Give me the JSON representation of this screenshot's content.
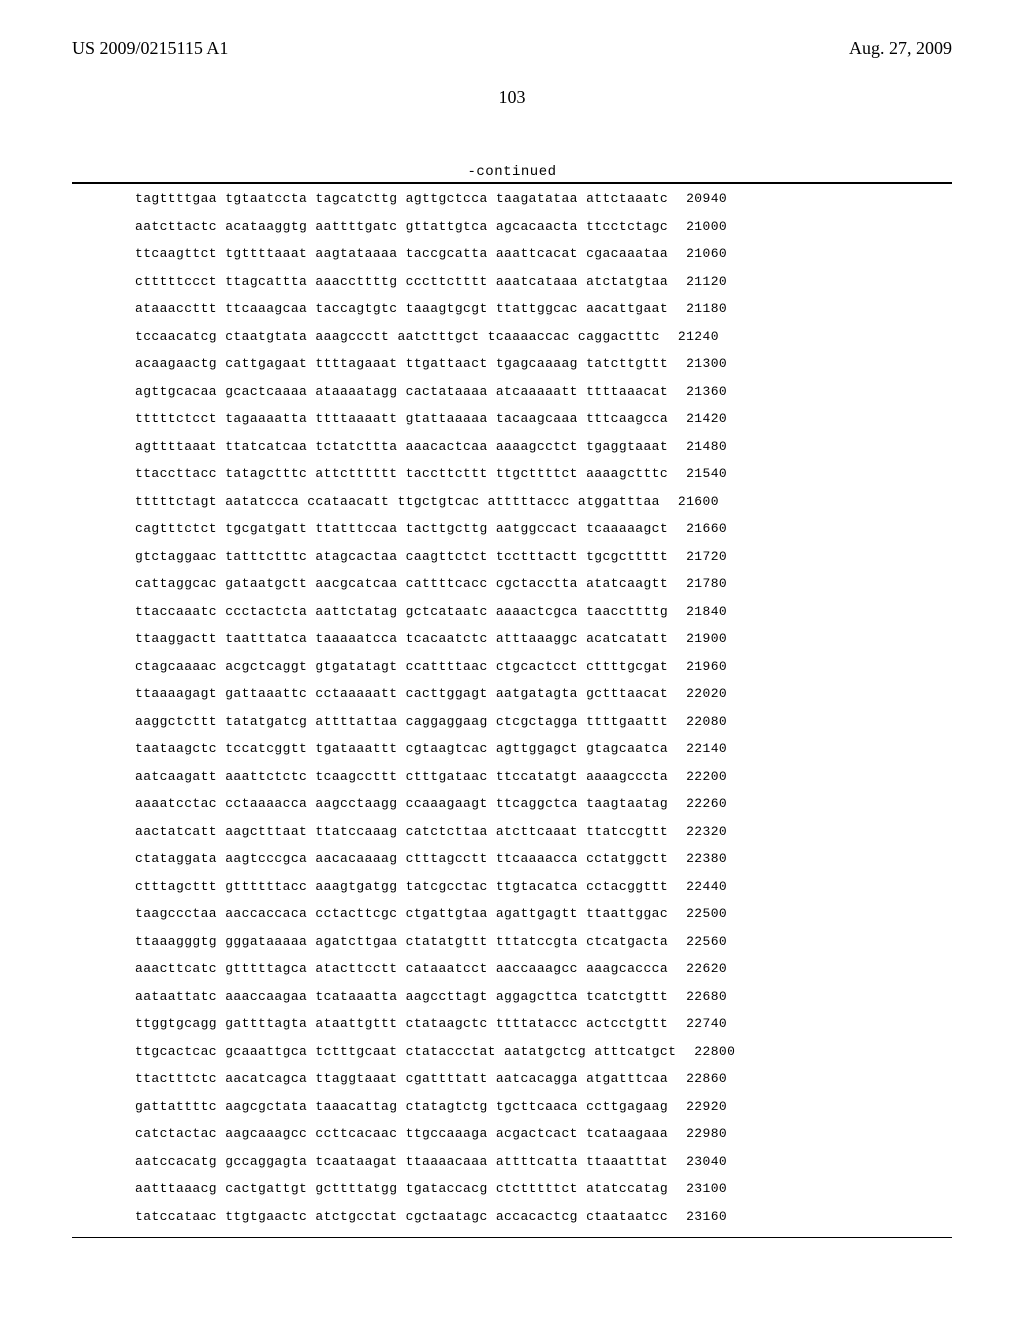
{
  "header": {
    "pub_number": "US 2009/0215115 A1",
    "date": "Aug. 27, 2009"
  },
  "page_number": "103",
  "continued_label": "-continued",
  "sequence": {
    "rows": [
      {
        "g": [
          "tagttttgaa",
          "tgtaatccta",
          "tagcatcttg",
          "agttgctcca",
          "taagatataa",
          "attctaaatc"
        ],
        "p": "20940"
      },
      {
        "g": [
          "aatcttactc",
          "acataaggtg",
          "aattttgatc",
          "gttattgtca",
          "agcacaacta",
          "ttcctctagc"
        ],
        "p": "21000"
      },
      {
        "g": [
          "ttcaagttct",
          "tgttttaaat",
          "aagtataaaa",
          "taccgcatta",
          "aaattcacat",
          "cgacaaataa"
        ],
        "p": "21060"
      },
      {
        "g": [
          "ctttttccct",
          "ttagcattta",
          "aaaccttttg",
          "cccttctttt",
          "aaatcataaa",
          "atctatgtaa"
        ],
        "p": "21120"
      },
      {
        "g": [
          "ataaaccttt",
          "ttcaaagcaa",
          "taccagtgtc",
          "taaagtgcgt",
          "ttattggcac",
          "aacattgaat"
        ],
        "p": "21180"
      },
      {
        "g": [
          "tccaacatcg",
          "ctaatgtata",
          "aaagccctt",
          "aatctttgct",
          "tcaaaaccac",
          "caggactttc"
        ],
        "p": "21240"
      },
      {
        "g": [
          "acaagaactg",
          "cattgagaat",
          "ttttagaaat",
          "ttgattaact",
          "tgagcaaaag",
          "tatcttgttt"
        ],
        "p": "21300"
      },
      {
        "g": [
          "agttgcacaa",
          "gcactcaaaa",
          "ataaaatagg",
          "cactataaaa",
          "atcaaaaatt",
          "ttttaaacat"
        ],
        "p": "21360"
      },
      {
        "g": [
          "tttttctcct",
          "tagaaaatta",
          "ttttaaaatt",
          "gtattaaaaa",
          "tacaagcaaa",
          "tttcaagcca"
        ],
        "p": "21420"
      },
      {
        "g": [
          "agttttaaat",
          "ttatcatcaa",
          "tctatcttta",
          "aaacactcaa",
          "aaaagcctct",
          "tgaggtaaat"
        ],
        "p": "21480"
      },
      {
        "g": [
          "ttaccttacc",
          "tatagctttc",
          "attctttttt",
          "taccttcttt",
          "ttgcttttct",
          "aaaagctttc"
        ],
        "p": "21540"
      },
      {
        "g": [
          "tttttctagt",
          "aatatccca",
          "ccataacatt",
          "ttgctgtcac",
          "atttttaccc",
          "atggatttaa"
        ],
        "p": "21600"
      },
      {
        "g": [
          "cagtttctct",
          "tgcgatgatt",
          "ttatttccaa",
          "tacttgcttg",
          "aatggccact",
          "tcaaaaagct"
        ],
        "p": "21660"
      },
      {
        "g": [
          "gtctaggaac",
          "tatttctttc",
          "atagcactaa",
          "caagttctct",
          "tcctttactt",
          "tgcgcttttt"
        ],
        "p": "21720"
      },
      {
        "g": [
          "cattaggcac",
          "gataatgctt",
          "aacgcatcaa",
          "cattttcacc",
          "cgctacctta",
          "atatcaagtt"
        ],
        "p": "21780"
      },
      {
        "g": [
          "ttaccaaatc",
          "ccctactcta",
          "aattctatag",
          "gctcataatc",
          "aaaactcgca",
          "taaccttttg"
        ],
        "p": "21840"
      },
      {
        "g": [
          "ttaaggactt",
          "taatttatca",
          "taaaaatcca",
          "tcacaatctc",
          "atttaaaggc",
          "acatcatatt"
        ],
        "p": "21900"
      },
      {
        "g": [
          "ctagcaaaac",
          "acgctcaggt",
          "gtgatatagt",
          "ccattttaac",
          "ctgcactcct",
          "cttttgcgat"
        ],
        "p": "21960"
      },
      {
        "g": [
          "ttaaaagagt",
          "gattaaattc",
          "cctaaaaatt",
          "cacttggagt",
          "aatgatagta",
          "gctttaacat"
        ],
        "p": "22020"
      },
      {
        "g": [
          "aaggctcttt",
          "tatatgatcg",
          "attttattaa",
          "caggaggaag",
          "ctcgctagga",
          "ttttgaattt"
        ],
        "p": "22080"
      },
      {
        "g": [
          "taataagctc",
          "tccatcggtt",
          "tgataaattt",
          "cgtaagtcac",
          "agttggagct",
          "gtagcaatca"
        ],
        "p": "22140"
      },
      {
        "g": [
          "aatcaagatt",
          "aaattctctc",
          "tcaagccttt",
          "ctttgataac",
          "ttccatatgt",
          "aaaagcccta"
        ],
        "p": "22200"
      },
      {
        "g": [
          "aaaatcctac",
          "cctaaaacca",
          "aagcctaagg",
          "ccaaagaagt",
          "ttcaggctca",
          "taagtaatag"
        ],
        "p": "22260"
      },
      {
        "g": [
          "aactatcatt",
          "aagctttaat",
          "ttatccaaag",
          "catctcttaa",
          "atcttcaaat",
          "ttatccgttt"
        ],
        "p": "22320"
      },
      {
        "g": [
          "ctataggata",
          "aagtcccgca",
          "aacacaaaag",
          "ctttagcctt",
          "ttcaaaacca",
          "cctatggctt"
        ],
        "p": "22380"
      },
      {
        "g": [
          "ctttagcttt",
          "gttttttacc",
          "aaagtgatgg",
          "tatcgcctac",
          "ttgtacatca",
          "cctacggttt"
        ],
        "p": "22440"
      },
      {
        "g": [
          "taagccctaa",
          "aaccaccaca",
          "cctacttcgc",
          "ctgattgtaa",
          "agattgagtt",
          "ttaattggac"
        ],
        "p": "22500"
      },
      {
        "g": [
          "ttaaagggtg",
          "gggataaaaa",
          "agatcttgaa",
          "ctatatgttt",
          "tttatccgta",
          "ctcatgacta"
        ],
        "p": "22560"
      },
      {
        "g": [
          "aaacttcatc",
          "gtttttagca",
          "atacttcctt",
          "cataaatcct",
          "aaccaaagcc",
          "aaagcaccca"
        ],
        "p": "22620"
      },
      {
        "g": [
          "aataattatc",
          "aaaccaagaa",
          "tcataaatta",
          "aagccttagt",
          "aggagcttca",
          "tcatctgttt"
        ],
        "p": "22680"
      },
      {
        "g": [
          "ttggtgcagg",
          "gattttagta",
          "ataattgttt",
          "ctataagctc",
          "ttttataccc",
          "actcctgttt"
        ],
        "p": "22740"
      },
      {
        "g": [
          "ttgcactcac",
          "gcaaattgca",
          "tctttgcaat",
          "ctataccctat",
          "aatatgctcg",
          "atttcatgct"
        ],
        "p": "22800"
      },
      {
        "g": [
          "ttactttctc",
          "aacatcagca",
          "ttaggtaaat",
          "cgattttatt",
          "aatcacagga",
          "atgatttcaa"
        ],
        "p": "22860"
      },
      {
        "g": [
          "gattattttc",
          "aagcgctata",
          "taaacattag",
          "ctatagtctg",
          "tgcttcaaca",
          "ccttgagaag"
        ],
        "p": "22920"
      },
      {
        "g": [
          "catctactac",
          "aagcaaagcc",
          "ccttcacaac",
          "ttgccaaaga",
          "acgactcact",
          "tcataagaaa"
        ],
        "p": "22980"
      },
      {
        "g": [
          "aatccacatg",
          "gccaggagta",
          "tcaataagat",
          "ttaaaacaaa",
          "attttcatta",
          "ttaaatttat"
        ],
        "p": "23040"
      },
      {
        "g": [
          "aatttaaacg",
          "cactgattgt",
          "gcttttatgg",
          "tgataccacg",
          "ctctttttct",
          "atatccatag"
        ],
        "p": "23100"
      },
      {
        "g": [
          "tatccataac",
          "ttgtgaactc",
          "atctgcctat",
          "cgctaatagc",
          "accacactcg",
          "ctaataatcc"
        ],
        "p": "23160"
      }
    ]
  }
}
